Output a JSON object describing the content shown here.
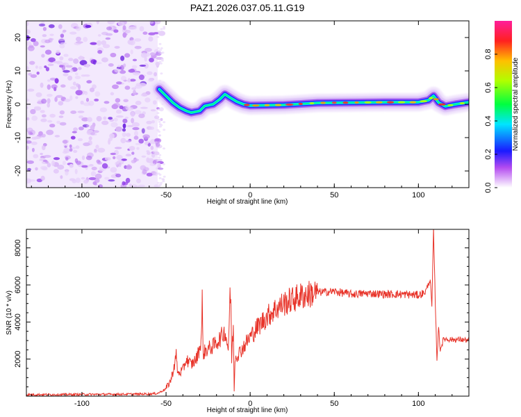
{
  "title": "PAZ1.2026.037.05.11.G19",
  "chart_data": [
    {
      "type": "heatmap",
      "name": "spectrogram",
      "xlabel": "Height of straight line (km)",
      "ylabel": "Frequency (Hz)",
      "xlim": [
        -133,
        130
      ],
      "ylim": [
        -25,
        25
      ],
      "x_ticks": [
        -100,
        -50,
        0,
        50,
        100
      ],
      "y_ticks": [
        -20,
        -10,
        0,
        10,
        20
      ],
      "noise_region_x": [
        -133,
        -55
      ],
      "ridge": [
        {
          "x": -54,
          "f": 4.5
        },
        {
          "x": -50,
          "f": 2.5
        },
        {
          "x": -46,
          "f": 0.5
        },
        {
          "x": -42,
          "f": -1.0
        },
        {
          "x": -38,
          "f": -2.0
        },
        {
          "x": -35,
          "f": -2.5
        },
        {
          "x": -30,
          "f": -2.0
        },
        {
          "x": -27,
          "f": -0.5
        },
        {
          "x": -22,
          "f": 0.0
        },
        {
          "x": -18,
          "f": 1.5
        },
        {
          "x": -15,
          "f": 3.0
        },
        {
          "x": -12,
          "f": 2.0
        },
        {
          "x": -8,
          "f": 0.8
        },
        {
          "x": -4,
          "f": 0.0
        },
        {
          "x": 0,
          "f": -0.4
        },
        {
          "x": 20,
          "f": -0.2
        },
        {
          "x": 40,
          "f": 0.4
        },
        {
          "x": 60,
          "f": 0.5
        },
        {
          "x": 80,
          "f": 0.6
        },
        {
          "x": 100,
          "f": 0.6
        },
        {
          "x": 106,
          "f": 1.2
        },
        {
          "x": 109,
          "f": 2.5
        },
        {
          "x": 112,
          "f": 0.5
        },
        {
          "x": 116,
          "f": -0.6
        },
        {
          "x": 122,
          "f": 0.0
        },
        {
          "x": 130,
          "f": 0.6
        }
      ]
    },
    {
      "type": "colorbar",
      "name": "amplitude-colorbar",
      "label": "Normalized spectral amplitude",
      "range": [
        0,
        1
      ],
      "ticks": [
        "0.0",
        "0.2",
        "0.4",
        "0.6",
        "0.8"
      ]
    },
    {
      "type": "line",
      "name": "snr",
      "xlabel": "Height of straight line (km)",
      "ylabel": "SNR (10 * v/v)",
      "xlim": [
        -133,
        130
      ],
      "ylim": [
        0,
        9000
      ],
      "x_ticks": [
        -100,
        -50,
        0,
        50,
        100
      ],
      "y_ticks": [
        2000,
        4000,
        6000,
        8000
      ],
      "color": "#e8342a",
      "series": [
        {
          "name": "SNR",
          "points": [
            [
              -133,
              80
            ],
            [
              -110,
              90
            ],
            [
              -80,
              100
            ],
            [
              -60,
              120
            ],
            [
              -55,
              150
            ],
            [
              -50,
              400
            ],
            [
              -47,
              900
            ],
            [
              -45,
              1700
            ],
            [
              -44,
              2200
            ],
            [
              -43,
              1200
            ],
            [
              -40,
              1400
            ],
            [
              -38,
              2000
            ],
            [
              -35,
              1700
            ],
            [
              -32,
              2000
            ],
            [
              -30,
              2600
            ],
            [
              -29,
              3200
            ],
            [
              -28.5,
              5200
            ],
            [
              -28,
              2300
            ],
            [
              -26,
              2500
            ],
            [
              -22,
              2700
            ],
            [
              -18,
              3100
            ],
            [
              -15,
              3500
            ],
            [
              -13,
              2600
            ],
            [
              -12,
              5200
            ],
            [
              -11.5,
              5400
            ],
            [
              -11,
              2000
            ],
            [
              -10,
              3800
            ],
            [
              -9.5,
              300
            ],
            [
              -9,
              2100
            ],
            [
              -6,
              2400
            ],
            [
              -3,
              2800
            ],
            [
              0,
              3200
            ],
            [
              5,
              3800
            ],
            [
              10,
              4300
            ],
            [
              15,
              4700
            ],
            [
              20,
              5000
            ],
            [
              25,
              5200
            ],
            [
              30,
              5400
            ],
            [
              35,
              5500
            ],
            [
              40,
              5600
            ],
            [
              50,
              5650
            ],
            [
              60,
              5500
            ],
            [
              70,
              5550
            ],
            [
              80,
              5500
            ],
            [
              90,
              5500
            ],
            [
              100,
              5450
            ],
            [
              104,
              5600
            ],
            [
              107,
              6300
            ],
            [
              108,
              4800
            ],
            [
              109,
              9000
            ],
            [
              110,
              5100
            ],
            [
              111,
              2000
            ],
            [
              112,
              3700
            ],
            [
              113,
              2500
            ],
            [
              115,
              3100
            ],
            [
              120,
              3050
            ],
            [
              125,
              3050
            ],
            [
              130,
              3000
            ]
          ]
        }
      ]
    }
  ]
}
